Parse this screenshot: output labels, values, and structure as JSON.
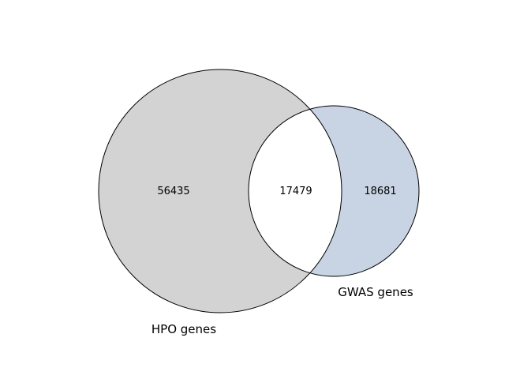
{
  "sets": [
    {
      "label": "HPO genes",
      "only_count": "56435",
      "color": "#d3d3d3"
    },
    {
      "label": "GWAS genes",
      "only_count": "18681",
      "color": "#c8d4e4"
    }
  ],
  "intersection": {
    "count": "17479",
    "color": "#ffffff"
  },
  "stroke_color": "#000000"
}
